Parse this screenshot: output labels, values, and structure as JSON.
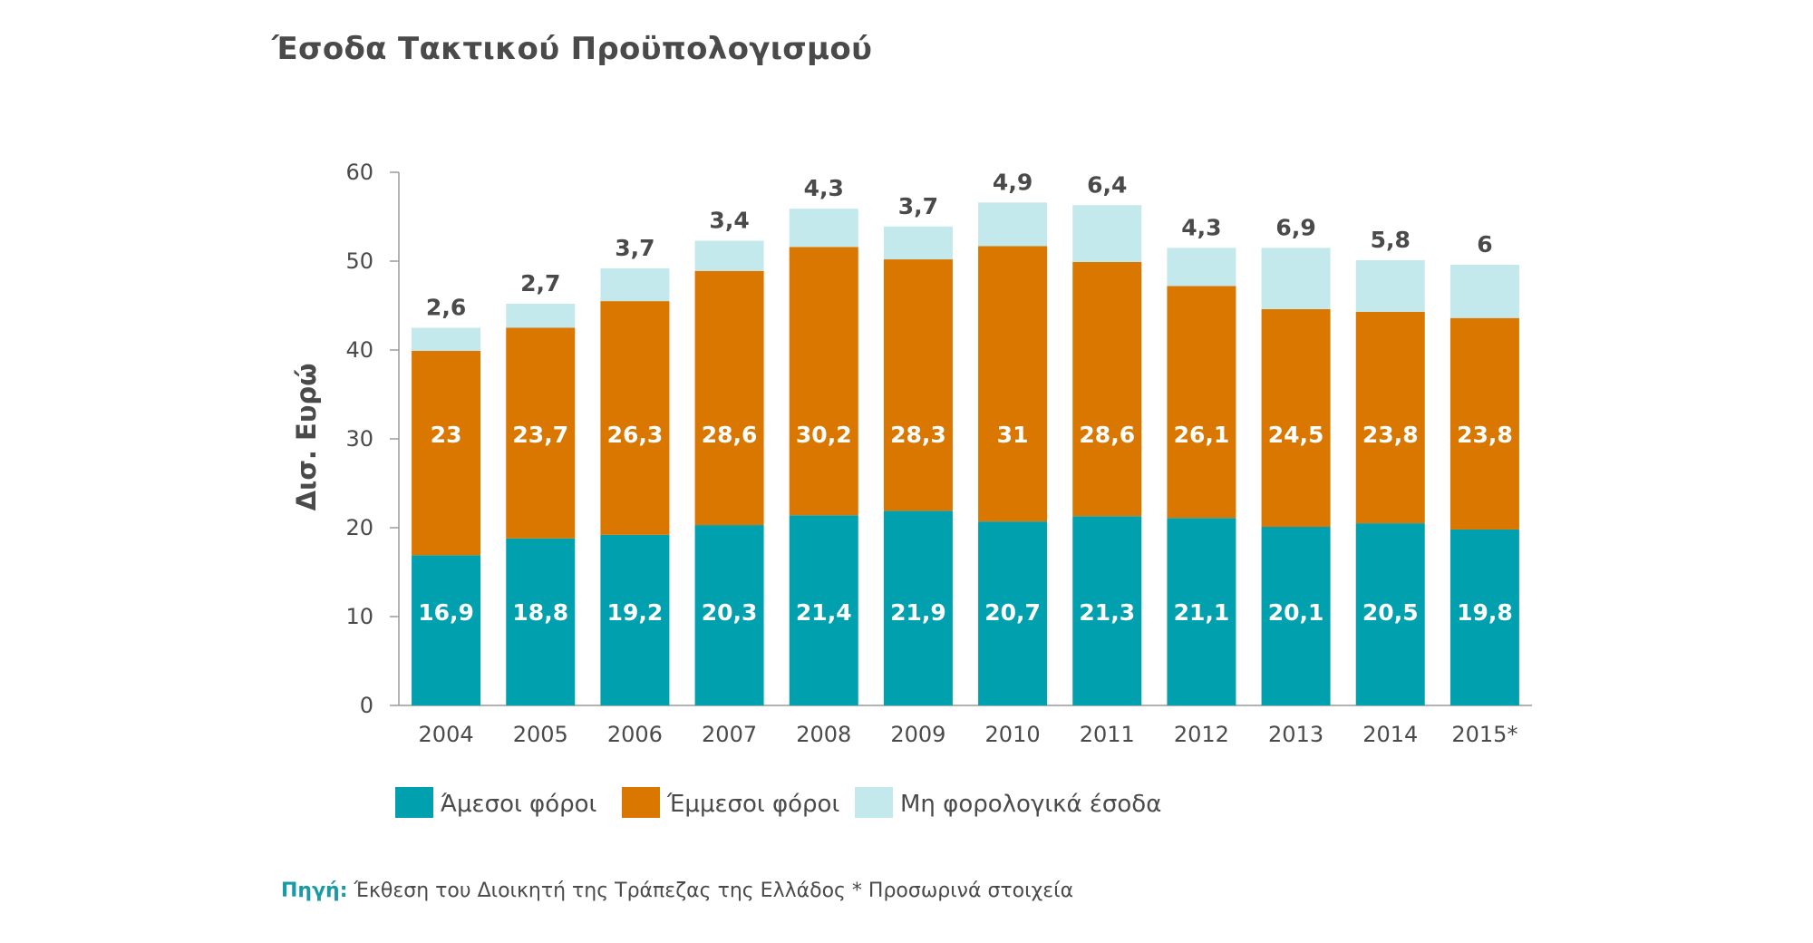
{
  "title": "Έσοδα Τακτικού Προϋπολογισμού",
  "source": {
    "label": "Πηγή:",
    "text": "Έκθεση του Διοικητή της Τράπεζας της Ελλάδος * Προσωρινά στοιχεία"
  },
  "chart_data": {
    "type": "bar",
    "stacked": true,
    "ylabel": "Δισ. Ευρώ",
    "ylim": [
      0,
      60
    ],
    "yticks": [
      0,
      10,
      20,
      30,
      40,
      50,
      60
    ],
    "grid": false,
    "legend_position": "bottom",
    "categories": [
      "2004",
      "2005",
      "2006",
      "2007",
      "2008",
      "2009",
      "2010",
      "2011",
      "2012",
      "2013",
      "2014",
      "2015*"
    ],
    "series": [
      {
        "name": "Άμεσοι φόροι",
        "color": "#00a0ae",
        "values": [
          16.9,
          18.8,
          19.2,
          20.3,
          21.4,
          21.9,
          20.7,
          21.3,
          21.1,
          20.1,
          20.5,
          19.8
        ],
        "labels": [
          "16,9",
          "18,8",
          "19,2",
          "20,3",
          "21,4",
          "21,9",
          "20,7",
          "21,3",
          "21,1",
          "20,1",
          "20,5",
          "19,8"
        ]
      },
      {
        "name": "Έμμεσοι φόροι",
        "color": "#d97700",
        "values": [
          23,
          23.7,
          26.3,
          28.6,
          30.2,
          28.3,
          31,
          28.6,
          26.1,
          24.5,
          23.8,
          23.8
        ],
        "labels": [
          "23",
          "23,7",
          "26,3",
          "28,6",
          "30,2",
          "28,3",
          "31",
          "28,6",
          "26,1",
          "24,5",
          "23,8",
          "23,8"
        ]
      },
      {
        "name": "Μη φορολογικά έσοδα",
        "color": "#c3e9ec",
        "values": [
          2.6,
          2.7,
          3.7,
          3.4,
          4.3,
          3.7,
          4.9,
          6.4,
          4.3,
          6.9,
          5.8,
          6
        ],
        "labels": [
          "2,6",
          "2,7",
          "3,7",
          "3,4",
          "4,3",
          "3,7",
          "4,9",
          "6,4",
          "4,3",
          "6,9",
          "5,8",
          "6"
        ]
      }
    ]
  }
}
